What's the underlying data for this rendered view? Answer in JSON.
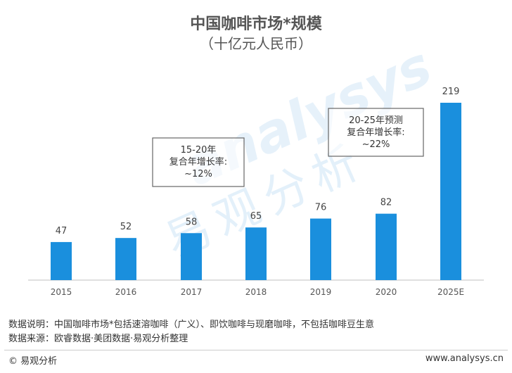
{
  "chart_data": {
    "type": "bar",
    "title": "中国咖啡市场*规模",
    "subtitle": "（十亿元人民币）",
    "categories": [
      "2015",
      "2016",
      "2017",
      "2018",
      "2019",
      "2020",
      "2025E"
    ],
    "values": [
      47,
      52,
      58,
      65,
      76,
      82,
      219
    ],
    "ylim": [
      0,
      219
    ],
    "bar_color": "#1a8fdd",
    "grid": false,
    "annotations": [
      {
        "lines": [
          "15-20年",
          "复合年增长率:",
          "~12%"
        ]
      },
      {
        "lines": [
          "20-25年预测",
          "复合年增长率:",
          "~22%"
        ]
      }
    ]
  },
  "notes": {
    "description": "数据说明：中国咖啡市场*包括速溶咖啡（广义）、即饮咖啡与现磨咖啡，不包括咖啡豆生意",
    "source": "数据来源：欧睿数据·美团数据·易观分析整理"
  },
  "footer": {
    "brand": "© 易观分析",
    "url": "www.analysys.cn"
  },
  "watermark": {
    "text": "易观分析",
    "text_en": "analysys",
    "color": "#9ecbee"
  }
}
